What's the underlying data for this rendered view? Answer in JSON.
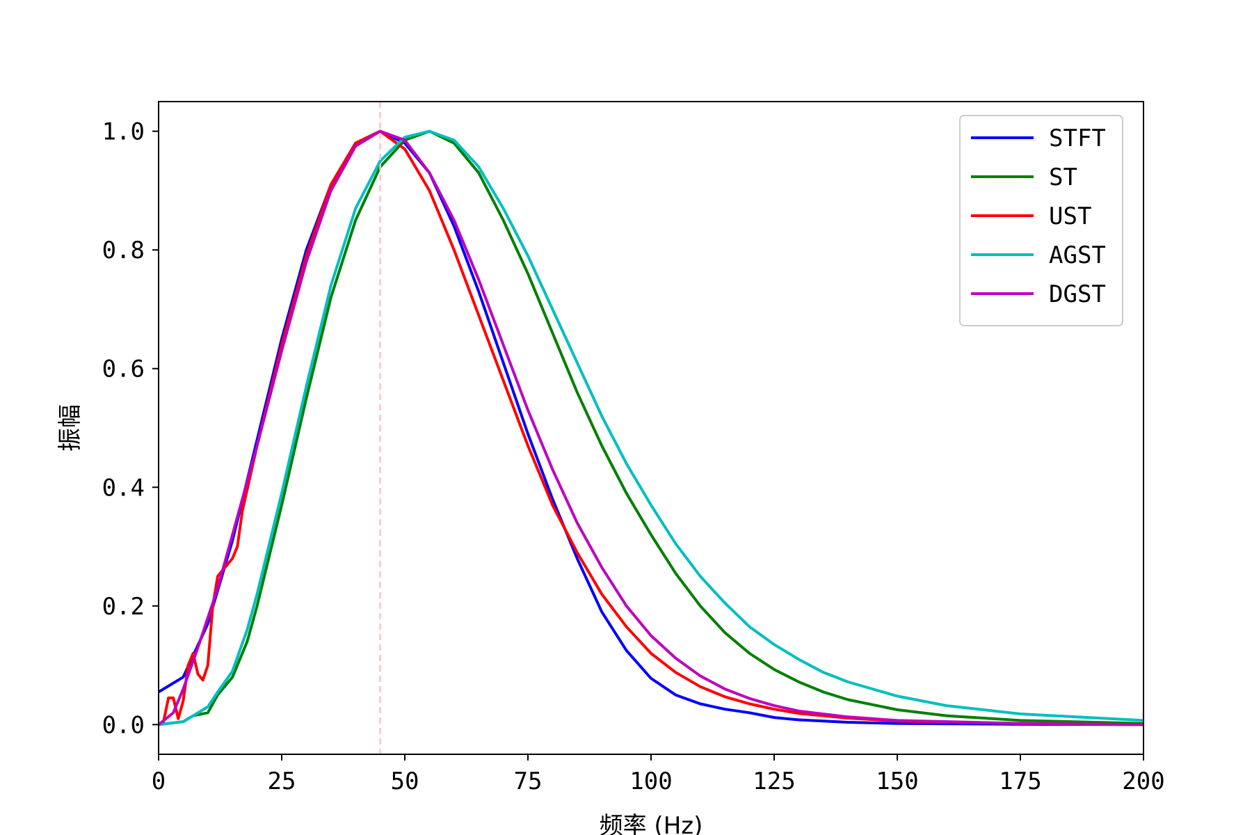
{
  "chart_data": {
    "type": "line",
    "title": "",
    "xlabel": "频率 (Hz)",
    "ylabel": "振幅",
    "xlim": [
      0,
      200
    ],
    "ylim": [
      -0.05,
      1.05
    ],
    "x_ticks": [
      0,
      25,
      50,
      75,
      100,
      125,
      150,
      175,
      200
    ],
    "y_ticks": [
      "0.0",
      "0.2",
      "0.4",
      "0.6",
      "0.8",
      "1.0"
    ],
    "grid": false,
    "legend_position": "top-right",
    "reference_line": {
      "x": 45,
      "color": "#ffc0cb",
      "style": "dashed"
    },
    "series": [
      {
        "name": "STFT",
        "color": "#0000ff",
        "points": [
          [
            0,
            0.055
          ],
          [
            5,
            0.08
          ],
          [
            10,
            0.17
          ],
          [
            15,
            0.31
          ],
          [
            20,
            0.48
          ],
          [
            25,
            0.65
          ],
          [
            30,
            0.8
          ],
          [
            35,
            0.91
          ],
          [
            40,
            0.98
          ],
          [
            45,
            1.0
          ],
          [
            50,
            0.98
          ],
          [
            55,
            0.93
          ],
          [
            60,
            0.84
          ],
          [
            65,
            0.73
          ],
          [
            70,
            0.61
          ],
          [
            75,
            0.49
          ],
          [
            80,
            0.38
          ],
          [
            85,
            0.28
          ],
          [
            90,
            0.19
          ],
          [
            95,
            0.125
          ],
          [
            100,
            0.078
          ],
          [
            105,
            0.05
          ],
          [
            110,
            0.035
          ],
          [
            115,
            0.026
          ],
          [
            120,
            0.02
          ],
          [
            125,
            0.012
          ],
          [
            130,
            0.008
          ],
          [
            140,
            0.004
          ],
          [
            150,
            0.002
          ],
          [
            175,
            0.0005
          ],
          [
            200,
            0.0
          ]
        ]
      },
      {
        "name": "ST",
        "color": "#008000",
        "points": [
          [
            0,
            0.0
          ],
          [
            5,
            0.005
          ],
          [
            7,
            0.015
          ],
          [
            10,
            0.02
          ],
          [
            12,
            0.05
          ],
          [
            15,
            0.08
          ],
          [
            18,
            0.14
          ],
          [
            20,
            0.2
          ],
          [
            25,
            0.37
          ],
          [
            30,
            0.55
          ],
          [
            35,
            0.72
          ],
          [
            40,
            0.85
          ],
          [
            45,
            0.94
          ],
          [
            50,
            0.985
          ],
          [
            55,
            1.0
          ],
          [
            60,
            0.98
          ],
          [
            65,
            0.93
          ],
          [
            70,
            0.85
          ],
          [
            75,
            0.76
          ],
          [
            80,
            0.66
          ],
          [
            85,
            0.56
          ],
          [
            90,
            0.47
          ],
          [
            95,
            0.39
          ],
          [
            100,
            0.32
          ],
          [
            105,
            0.255
          ],
          [
            110,
            0.2
          ],
          [
            115,
            0.155
          ],
          [
            120,
            0.12
          ],
          [
            125,
            0.093
          ],
          [
            130,
            0.072
          ],
          [
            135,
            0.055
          ],
          [
            140,
            0.042
          ],
          [
            150,
            0.025
          ],
          [
            160,
            0.015
          ],
          [
            175,
            0.007
          ],
          [
            200,
            0.002
          ]
        ]
      },
      {
        "name": "UST",
        "color": "#ff0000",
        "points": [
          [
            0,
            0.0
          ],
          [
            1,
            0.005
          ],
          [
            2,
            0.045
          ],
          [
            3,
            0.045
          ],
          [
            4,
            0.01
          ],
          [
            5,
            0.04
          ],
          [
            6,
            0.1
          ],
          [
            7,
            0.12
          ],
          [
            8,
            0.085
          ],
          [
            9,
            0.075
          ],
          [
            10,
            0.1
          ],
          [
            11,
            0.2
          ],
          [
            12,
            0.25
          ],
          [
            13,
            0.26
          ],
          [
            14,
            0.27
          ],
          [
            15,
            0.28
          ],
          [
            16,
            0.3
          ],
          [
            17,
            0.36
          ],
          [
            20,
            0.47
          ],
          [
            25,
            0.64
          ],
          [
            30,
            0.79
          ],
          [
            35,
            0.91
          ],
          [
            40,
            0.98
          ],
          [
            45,
            1.0
          ],
          [
            50,
            0.97
          ],
          [
            55,
            0.9
          ],
          [
            60,
            0.8
          ],
          [
            65,
            0.69
          ],
          [
            70,
            0.58
          ],
          [
            75,
            0.47
          ],
          [
            80,
            0.37
          ],
          [
            85,
            0.29
          ],
          [
            90,
            0.22
          ],
          [
            95,
            0.165
          ],
          [
            100,
            0.12
          ],
          [
            105,
            0.088
          ],
          [
            110,
            0.064
          ],
          [
            115,
            0.047
          ],
          [
            120,
            0.035
          ],
          [
            125,
            0.026
          ],
          [
            130,
            0.019
          ],
          [
            140,
            0.011
          ],
          [
            150,
            0.006
          ],
          [
            175,
            0.002
          ],
          [
            200,
            0.0
          ]
        ]
      },
      {
        "name": "AGST",
        "color": "#00bfbf",
        "points": [
          [
            0,
            0.0
          ],
          [
            5,
            0.005
          ],
          [
            7,
            0.015
          ],
          [
            10,
            0.03
          ],
          [
            12,
            0.055
          ],
          [
            15,
            0.09
          ],
          [
            18,
            0.16
          ],
          [
            20,
            0.22
          ],
          [
            25,
            0.39
          ],
          [
            30,
            0.57
          ],
          [
            35,
            0.74
          ],
          [
            40,
            0.87
          ],
          [
            45,
            0.95
          ],
          [
            50,
            0.99
          ],
          [
            55,
            1.0
          ],
          [
            60,
            0.985
          ],
          [
            65,
            0.94
          ],
          [
            70,
            0.87
          ],
          [
            75,
            0.79
          ],
          [
            80,
            0.7
          ],
          [
            85,
            0.61
          ],
          [
            90,
            0.52
          ],
          [
            95,
            0.44
          ],
          [
            100,
            0.37
          ],
          [
            105,
            0.305
          ],
          [
            110,
            0.25
          ],
          [
            115,
            0.205
          ],
          [
            120,
            0.165
          ],
          [
            125,
            0.135
          ],
          [
            130,
            0.11
          ],
          [
            135,
            0.088
          ],
          [
            140,
            0.072
          ],
          [
            150,
            0.048
          ],
          [
            160,
            0.032
          ],
          [
            175,
            0.018
          ],
          [
            200,
            0.007
          ]
        ]
      },
      {
        "name": "DGST",
        "color": "#bf00bf",
        "points": [
          [
            0,
            0.0
          ],
          [
            3,
            0.02
          ],
          [
            5,
            0.06
          ],
          [
            8,
            0.13
          ],
          [
            10,
            0.18
          ],
          [
            12,
            0.23
          ],
          [
            15,
            0.32
          ],
          [
            20,
            0.47
          ],
          [
            25,
            0.63
          ],
          [
            30,
            0.78
          ],
          [
            35,
            0.9
          ],
          [
            40,
            0.975
          ],
          [
            45,
            1.0
          ],
          [
            50,
            0.985
          ],
          [
            55,
            0.93
          ],
          [
            60,
            0.85
          ],
          [
            65,
            0.75
          ],
          [
            70,
            0.64
          ],
          [
            75,
            0.53
          ],
          [
            80,
            0.43
          ],
          [
            85,
            0.34
          ],
          [
            90,
            0.265
          ],
          [
            95,
            0.2
          ],
          [
            100,
            0.15
          ],
          [
            105,
            0.112
          ],
          [
            110,
            0.082
          ],
          [
            115,
            0.06
          ],
          [
            120,
            0.044
          ],
          [
            125,
            0.032
          ],
          [
            130,
            0.023
          ],
          [
            140,
            0.013
          ],
          [
            150,
            0.007
          ],
          [
            175,
            0.002
          ],
          [
            200,
            0.0
          ]
        ]
      }
    ]
  }
}
